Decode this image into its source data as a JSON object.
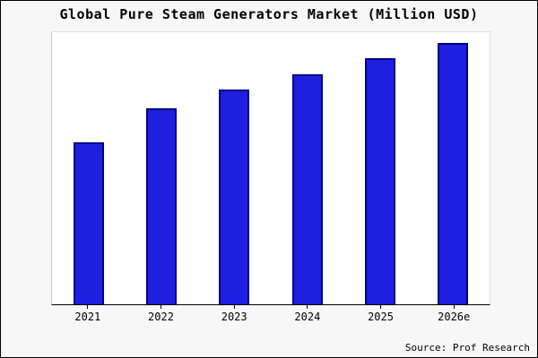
{
  "title": "Global Pure Steam Generators Market (Million USD)",
  "source": "Source: Prof Research",
  "colors": {
    "bar_fill": "#1f1fe0",
    "bar_border": "#00008b",
    "figure_background": "#f7f7f7",
    "plot_background": "#ffffff"
  },
  "chart_data": {
    "type": "bar",
    "title": "Global Pure Steam Generators Market (Million USD)",
    "categories": [
      "2021",
      "2022",
      "2023",
      "2024",
      "2025",
      "2026e"
    ],
    "values": [
      62,
      75,
      82,
      88,
      94,
      100
    ],
    "xlabel": "",
    "ylabel": "",
    "ylim": [
      0,
      104
    ],
    "grid": false,
    "legend": false,
    "y_axis_tick_labels_visible": false,
    "source_annotation": "Source: Prof Research"
  }
}
